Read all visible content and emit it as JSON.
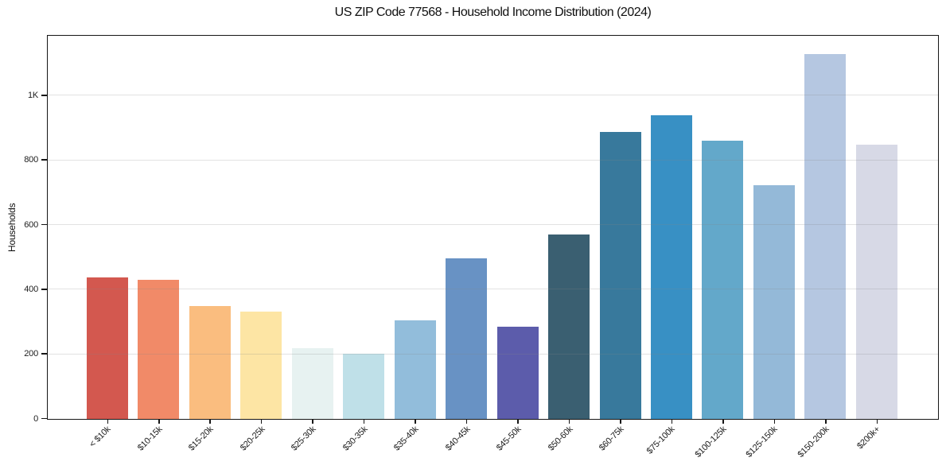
{
  "chart_data": {
    "type": "bar",
    "title": "US ZIP Code 77568 - Household Income Distribution (2024)",
    "xlabel": "",
    "ylabel": "Households",
    "categories": [
      "< $10k",
      "$10-15k",
      "$15-20k",
      "$20-25k",
      "$25-30k",
      "$30-35k",
      "$35-40k",
      "$40-45k",
      "$45-50k",
      "$50-60k",
      "$60-75k",
      "$75-100k",
      "$100-125k",
      "$125-150k",
      "$150-200k",
      "$200k+"
    ],
    "values": [
      437,
      430,
      350,
      331,
      220,
      202,
      305,
      498,
      286,
      570,
      889,
      940,
      861,
      723,
      1128,
      849
    ],
    "bar_colors": [
      "#d3584f",
      "#f18a68",
      "#fabd7f",
      "#fde5a4",
      "#e7f2f1",
      "#bfe0e8",
      "#92bddb",
      "#6892c4",
      "#5c5cab",
      "#3a5f71",
      "#38799c",
      "#3890c4",
      "#63a8ca",
      "#94b9d8",
      "#b5c7e1",
      "#d7d9e6"
    ],
    "ytick_values": [
      0,
      200,
      400,
      600,
      800,
      1000
    ],
    "ytick_labels": [
      "0",
      "200",
      "400",
      "600",
      "800",
      "1K"
    ],
    "ylim": [
      0,
      1183
    ],
    "grid": "horizontal-light-over-bars",
    "legend": "none",
    "plot_background": "#ffffff",
    "axis_color": "#161616",
    "text_color": "#1a1a1a"
  }
}
